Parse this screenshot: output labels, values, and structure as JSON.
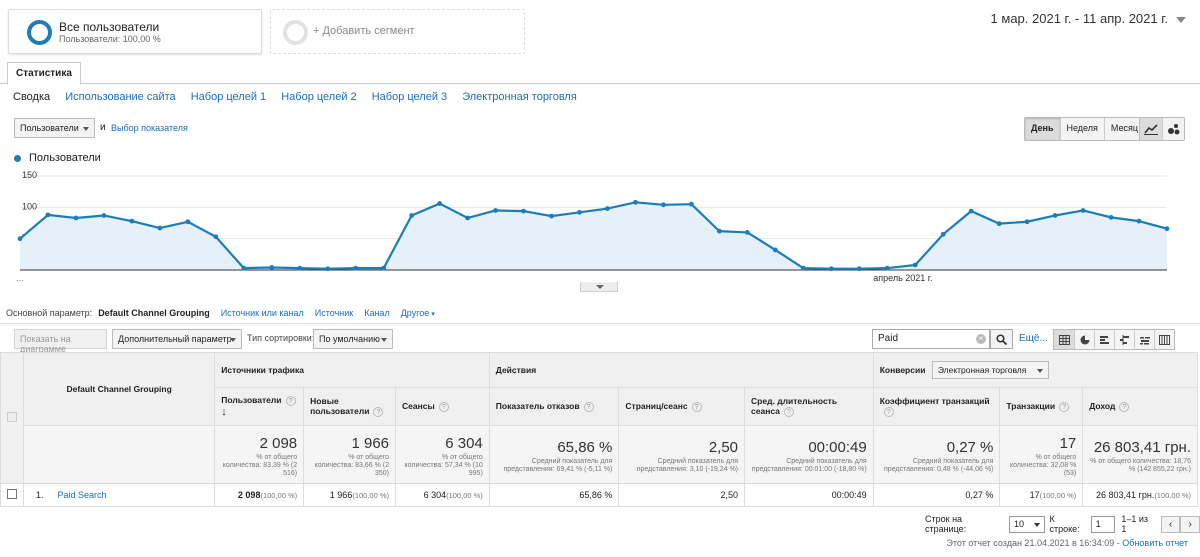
{
  "segments": {
    "primary": {
      "title": "Все пользователи",
      "subtitle": "Пользователи: 100,00 %"
    },
    "add": {
      "title": "+ Добавить сегмент"
    }
  },
  "date_range": "1 мар. 2021 г. - 11 апр. 2021 г.",
  "tabs": {
    "active": "Статистика"
  },
  "subnav": [
    "Сводка",
    "Использование сайта",
    "Набор целей 1",
    "Набор целей 2",
    "Набор целей 3",
    "Электронная торговля"
  ],
  "metric_selector": {
    "value": "Пользователи",
    "and": "и",
    "link": "Выбор показателя"
  },
  "period_buttons": [
    "День",
    "Неделя",
    "Месяц"
  ],
  "legend": {
    "label": "Пользователи"
  },
  "chart_data": {
    "type": "area",
    "series": [
      {
        "name": "Пользователи",
        "color": "#1c7dbd",
        "values": [
          50,
          88,
          83,
          87,
          78,
          67,
          77,
          53,
          3,
          4,
          3,
          2,
          3,
          3,
          87,
          106,
          83,
          95,
          94,
          86,
          92,
          98,
          108,
          104,
          105,
          62,
          60,
          32,
          3,
          2,
          2,
          3,
          8,
          57,
          94,
          74,
          77,
          87,
          95,
          84,
          78,
          66
        ]
      }
    ],
    "y_ticks": [
      50,
      100,
      150
    ],
    "ylim": [
      0,
      150
    ],
    "x_label": "апрель 2021 г.",
    "x_label_index": 31,
    "x_start_label": "..."
  },
  "dimensions": {
    "label": "Основной параметр:",
    "active": "Default Channel Grouping",
    "links": [
      "Источник или канал",
      "Источник",
      "Канал"
    ],
    "more": "Другое"
  },
  "toolbar": {
    "plot_rows": "Показать на диаграмме",
    "secondary": "Дополнительный параметр",
    "sort_label": "Тип сортировки:",
    "sort_value": "По умолчанию",
    "search_value": "Paid",
    "more": "Ещё..."
  },
  "table": {
    "dim_header": "Default Channel Grouping",
    "groups": {
      "acquisition": "Источники трафика",
      "behavior": "Действия",
      "conversions": "Конверсии",
      "conversion_type": "Электронная торговля"
    },
    "columns": [
      "Пользователи",
      "Новые пользователи",
      "Сеансы",
      "Показатель отказов",
      "Страниц/сеанс",
      "Сред. длительность сеанса",
      "Коэффициент транзакций",
      "Транзакции",
      "Доход"
    ],
    "totals": [
      {
        "value": "2 098",
        "note": "% от общего количества: 83,39 % (2 516)"
      },
      {
        "value": "1 966",
        "note": "% от общего количества: 83,66 % (2 350)"
      },
      {
        "value": "6 304",
        "note": "% от общего количества: 57,34 % (10 995)"
      },
      {
        "value": "65,86 %",
        "note": "Средний показатель для представления: 69,41 % (-5,11 %)"
      },
      {
        "value": "2,50",
        "note": "Средний показатель для представления: 3,10 (-19,24 %)"
      },
      {
        "value": "00:00:49",
        "note": "Средний показатель для представления: 00:01:00 (-18,80 %)"
      },
      {
        "value": "0,27 %",
        "note": "Средний показатель для представления: 0,48 % (-44,06 %)"
      },
      {
        "value": "17",
        "note": "% от общего количества: 32,08 % (53)"
      },
      {
        "value": "26 803,41 грн.",
        "note": "% от общего количества: 18,76 % (142 855,22 грн.)"
      }
    ],
    "rows": [
      {
        "index": "1.",
        "name": "Paid Search",
        "cells": [
          {
            "v": "2 098",
            "p": "(100,00 %)"
          },
          {
            "v": "1 966",
            "p": "(100,00 %)"
          },
          {
            "v": "6 304",
            "p": "(100,00 %)"
          },
          {
            "v": "65,86 %",
            "p": ""
          },
          {
            "v": "2,50",
            "p": ""
          },
          {
            "v": "00:00:49",
            "p": ""
          },
          {
            "v": "0,27 %",
            "p": ""
          },
          {
            "v": "17",
            "p": "(100,00 %)"
          },
          {
            "v": "26 803,41 грн.",
            "p": "(100,00 %)"
          }
        ]
      }
    ]
  },
  "pager": {
    "rows_label": "Строк на странице:",
    "rows_value": "10",
    "goto_label": "К строке:",
    "goto_value": "1",
    "range": "1–1 из 1"
  },
  "footer": {
    "text": "Этот отчет создан 21.04.2021 в 16:34:09 - ",
    "link": "Обновить отчет"
  }
}
